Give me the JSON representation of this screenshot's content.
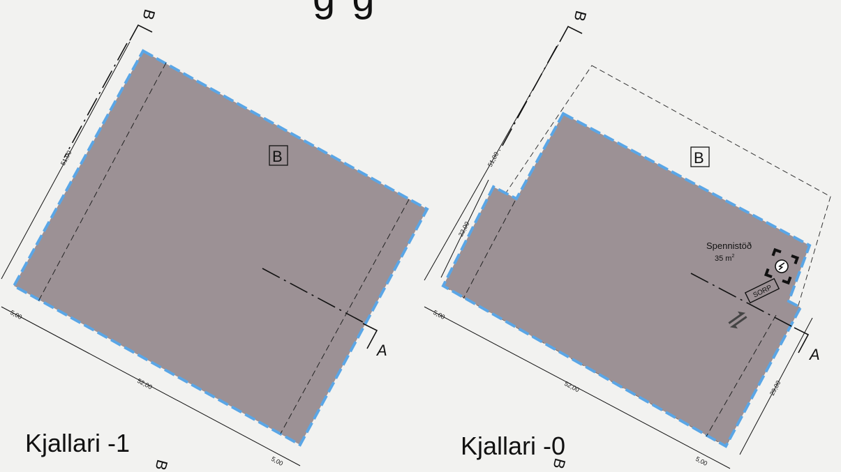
{
  "drawing": {
    "top_title_fragment": "g g",
    "plans": [
      {
        "name": "Kjallari -1",
        "area_label": "B",
        "section_marks": {
          "b_top": "B",
          "b_bottom": "B",
          "a": "A"
        },
        "dimensions": {
          "left_side": "51,00",
          "bottom_side": "52,00",
          "offset_left": "5,00",
          "offset_right": "5,00"
        }
      },
      {
        "name": "Kjallari -0",
        "area_label": "B",
        "section_marks": {
          "b_top": "B",
          "b_bottom": "B",
          "a": "A"
        },
        "dimensions": {
          "left_side": "51,00",
          "left_inner": "22,00",
          "bottom_side": "52,00",
          "right_side": "29,00",
          "offset_left": "5,00",
          "offset_right": "5,00"
        },
        "substation": {
          "name": "Spennistöð",
          "area": "35 m",
          "area_unit_power": "2"
        },
        "sorp_label": "SORP"
      }
    ],
    "colors": {
      "fill": "#9c9195",
      "border": "#5aa6e6",
      "line": "#111111",
      "background": "#f2f2f0"
    }
  }
}
